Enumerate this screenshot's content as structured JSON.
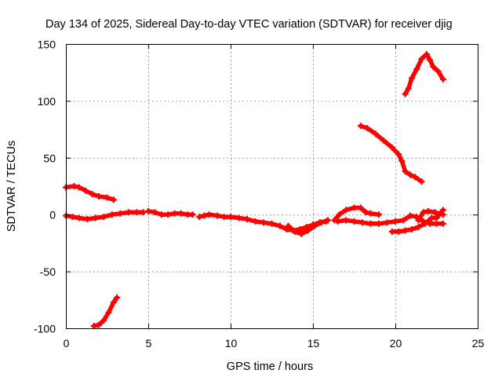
{
  "chart_data": {
    "type": "scatter",
    "title": "Day 134 of 2025, Sidereal Day-to-day VTEC variation (SDTVAR) for receiver djig",
    "xlabel": "GPS time / hours",
    "ylabel": "SDTVAR / TECUs",
    "xlim": [
      0,
      25
    ],
    "ylim": [
      -100,
      150
    ],
    "xticks": [
      0,
      5,
      10,
      15,
      20,
      25
    ],
    "yticks": [
      -100,
      -50,
      0,
      50,
      100,
      150
    ],
    "grid": true,
    "marker": "plus",
    "color": "#ff0000",
    "series": [
      {
        "name": "seg-upper-left",
        "points": [
          [
            0,
            24
          ],
          [
            0.5,
            25
          ],
          [
            0.8,
            24
          ],
          [
            1.2,
            21
          ],
          [
            1.6,
            18
          ],
          [
            2.0,
            16
          ],
          [
            2.5,
            15
          ],
          [
            2.9,
            13
          ]
        ]
      },
      {
        "name": "seg-near-zero-main",
        "points": [
          [
            0,
            -1
          ],
          [
            0.4,
            -2
          ],
          [
            0.8,
            -3
          ],
          [
            1.3,
            -4
          ],
          [
            1.8,
            -3
          ],
          [
            2.3,
            -2
          ],
          [
            2.8,
            0
          ],
          [
            3.3,
            1
          ],
          [
            3.8,
            2
          ],
          [
            4.3,
            2
          ],
          [
            4.7,
            2
          ]
        ]
      },
      {
        "name": "seg-mid-cluster",
        "points": [
          [
            5.0,
            3
          ],
          [
            5.4,
            2
          ],
          [
            5.8,
            0
          ],
          [
            6.2,
            0
          ],
          [
            6.6,
            1
          ],
          [
            7.0,
            1
          ],
          [
            7.4,
            0
          ],
          [
            7.7,
            0
          ]
        ]
      },
      {
        "name": "seg-mid-right",
        "points": [
          [
            8.1,
            -2
          ],
          [
            8.4,
            -1
          ],
          [
            8.7,
            0
          ],
          [
            9.2,
            -1
          ],
          [
            9.6,
            -2
          ],
          [
            10.0,
            -2
          ],
          [
            10.5,
            -3
          ],
          [
            11.0,
            -4
          ],
          [
            11.5,
            -6
          ],
          [
            12.0,
            -7
          ],
          [
            12.5,
            -8
          ],
          [
            13.0,
            -10
          ],
          [
            13.4,
            -13
          ],
          [
            13.8,
            -14
          ],
          [
            14.2,
            -13
          ],
          [
            14.6,
            -11
          ],
          [
            15.0,
            -9
          ],
          [
            15.4,
            -7
          ],
          [
            15.8,
            -6
          ]
        ]
      },
      {
        "name": "seg-dip-lower",
        "points": [
          [
            13.5,
            -10
          ],
          [
            13.9,
            -15
          ],
          [
            14.3,
            -17
          ],
          [
            14.7,
            -14
          ],
          [
            15.1,
            -10
          ],
          [
            15.5,
            -7
          ],
          [
            15.9,
            -5
          ]
        ]
      },
      {
        "name": "seg-hump",
        "points": [
          [
            16.3,
            -5
          ],
          [
            16.6,
            0
          ],
          [
            17.0,
            4
          ],
          [
            17.5,
            6
          ],
          [
            17.9,
            6
          ],
          [
            18.2,
            2
          ],
          [
            18.5,
            1
          ],
          [
            19.0,
            0
          ]
        ]
      },
      {
        "name": "seg-flat-right",
        "points": [
          [
            16.5,
            -6
          ],
          [
            17.0,
            -5
          ],
          [
            17.5,
            -6
          ],
          [
            18.0,
            -7
          ],
          [
            18.5,
            -8
          ],
          [
            19.0,
            -8
          ],
          [
            19.5,
            -7
          ],
          [
            20.0,
            -6
          ],
          [
            20.5,
            -5
          ],
          [
            20.9,
            -1
          ],
          [
            21.3,
            -2
          ],
          [
            21.7,
            -6
          ],
          [
            22.1,
            -8
          ],
          [
            22.5,
            -8
          ],
          [
            22.9,
            -8
          ]
        ]
      },
      {
        "name": "seg-lower-right",
        "points": [
          [
            19.8,
            -15
          ],
          [
            20.2,
            -15
          ],
          [
            20.6,
            -14
          ],
          [
            21.0,
            -13
          ],
          [
            21.4,
            -11
          ],
          [
            21.8,
            -8
          ],
          [
            22.2,
            -3
          ],
          [
            22.5,
            -3
          ],
          [
            22.9,
            4
          ]
        ]
      },
      {
        "name": "seg-cross-right",
        "points": [
          [
            21.4,
            -5
          ],
          [
            21.7,
            2
          ],
          [
            22.0,
            3
          ],
          [
            22.4,
            2
          ],
          [
            22.9,
            0
          ]
        ]
      },
      {
        "name": "seg-high-right",
        "points": [
          [
            17.9,
            78
          ],
          [
            18.3,
            76
          ],
          [
            18.8,
            71
          ],
          [
            19.3,
            65
          ],
          [
            19.8,
            59
          ],
          [
            20.2,
            53
          ],
          [
            20.4,
            47
          ],
          [
            20.6,
            38
          ],
          [
            20.9,
            35
          ],
          [
            21.2,
            33
          ],
          [
            21.6,
            29
          ]
        ]
      },
      {
        "name": "seg-top-right",
        "points": [
          [
            20.6,
            106
          ],
          [
            20.8,
            111
          ],
          [
            21.0,
            120
          ],
          [
            21.3,
            128
          ],
          [
            21.6,
            137
          ],
          [
            21.9,
            141
          ],
          [
            22.1,
            136
          ],
          [
            22.3,
            130
          ],
          [
            22.6,
            126
          ],
          [
            22.9,
            119
          ]
        ]
      },
      {
        "name": "seg-lower-left",
        "points": [
          [
            1.7,
            -98
          ],
          [
            2.0,
            -97
          ],
          [
            2.3,
            -93
          ],
          [
            2.6,
            -86
          ],
          [
            2.9,
            -77
          ],
          [
            3.1,
            -73
          ]
        ]
      }
    ]
  }
}
